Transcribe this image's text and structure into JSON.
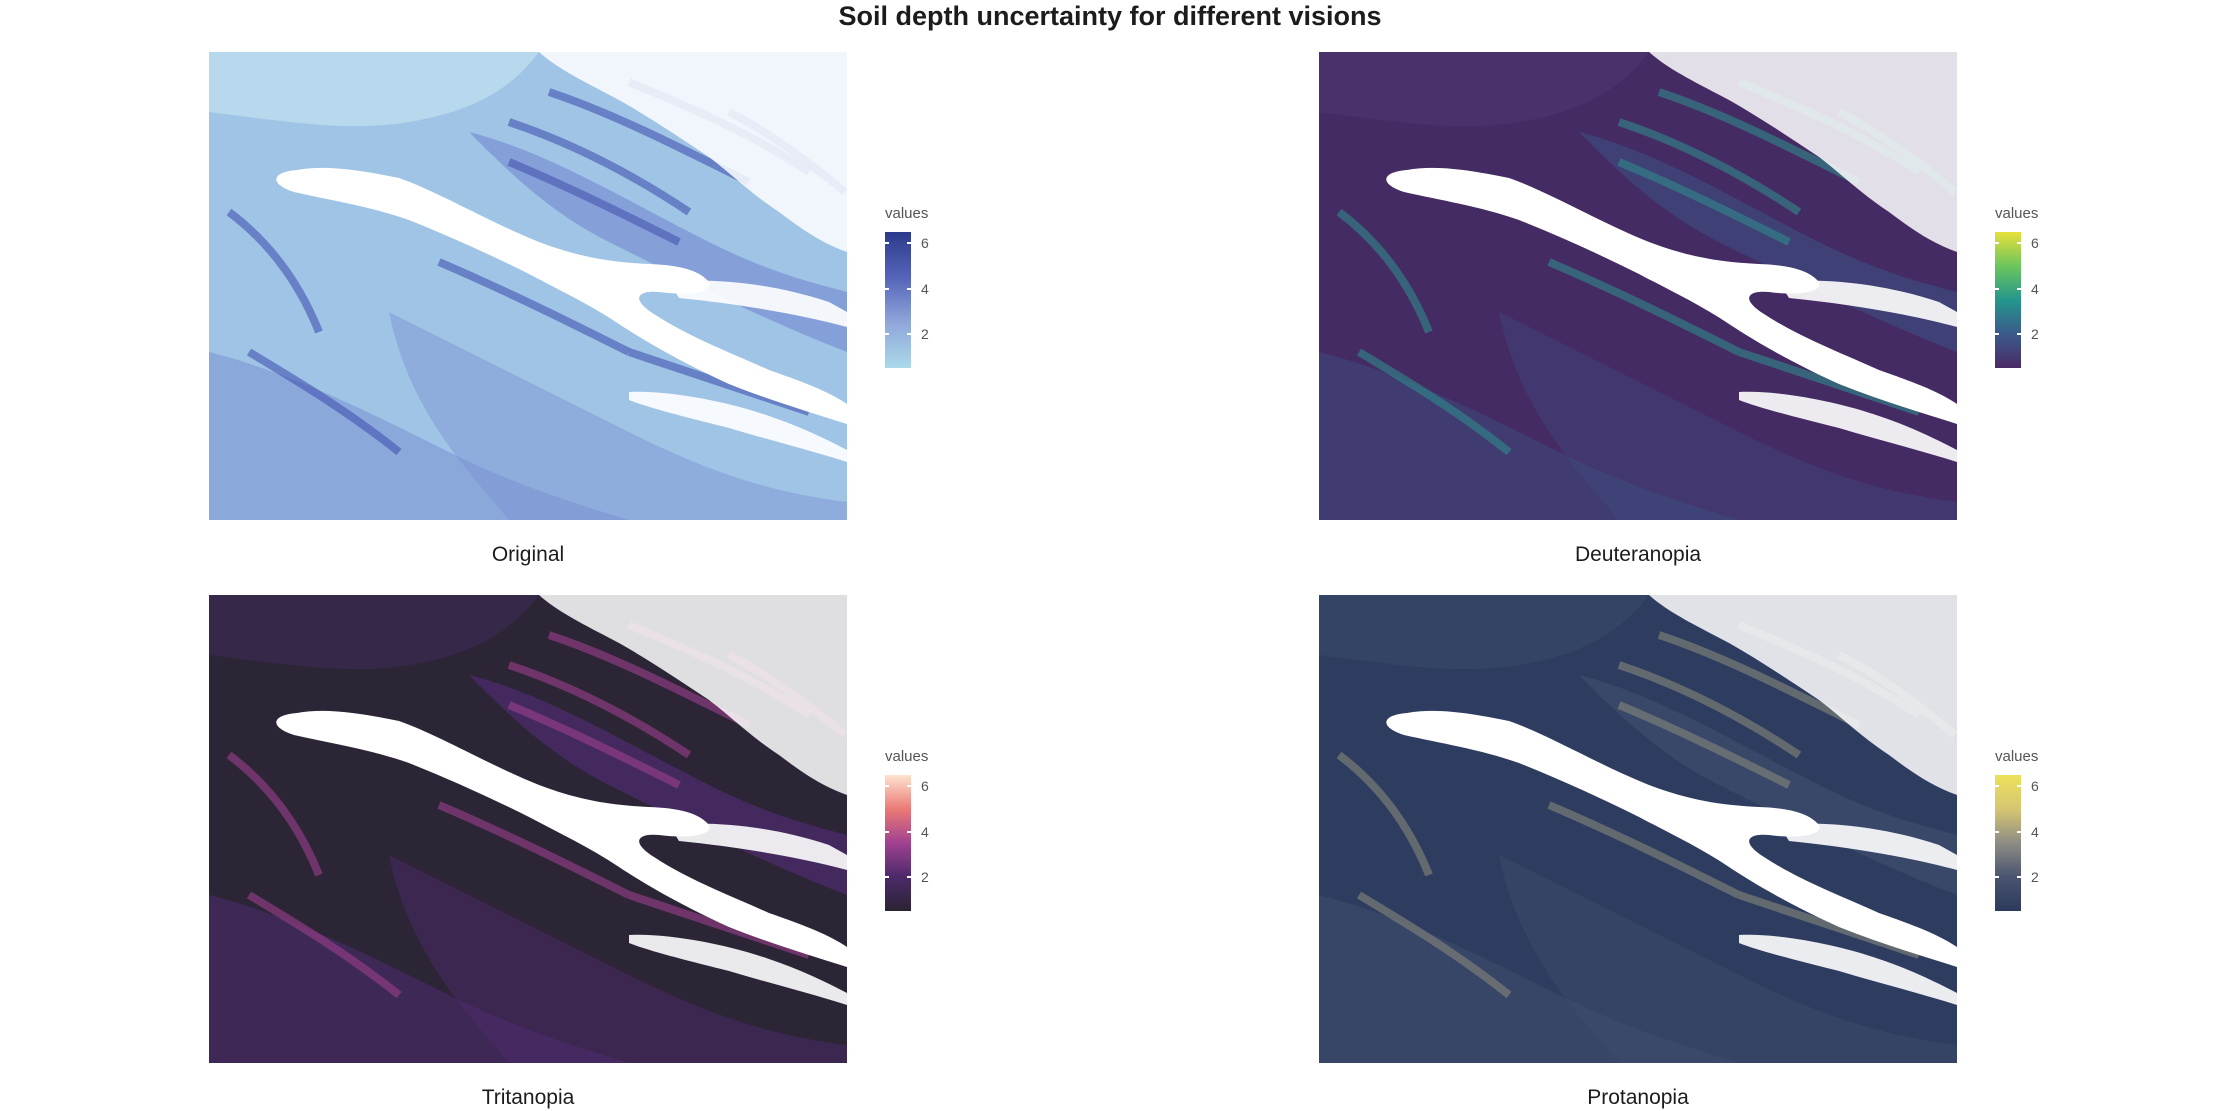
{
  "title": "Soil depth uncertainty for different visions",
  "chart_data": [
    {
      "type": "heatmap",
      "panel": "Original",
      "title": "Original",
      "legend": {
        "title": "values",
        "range": [
          0.5,
          6.5
        ],
        "ticks": [
          2,
          4,
          6
        ],
        "tick_labels": [
          "2",
          "4",
          "6"
        ],
        "colors": [
          "#abd9e9",
          "#8fa6da",
          "#5564b9",
          "#2c3a8c"
        ],
        "background": "#9fc4e6",
        "mid": "#7a92d2",
        "dark": "#4454b0",
        "spot": "#c3e3ef"
      }
    },
    {
      "type": "heatmap",
      "panel": "Deuteranopia",
      "title": "Deuteranopia",
      "legend": {
        "title": "values",
        "range": [
          0.5,
          6.5
        ],
        "ticks": [
          2,
          4,
          6
        ],
        "tick_labels": [
          "2",
          "4",
          "6"
        ],
        "colors": [
          "#4a2a65",
          "#3b5a8b",
          "#24968c",
          "#6cc55c",
          "#e8e03a"
        ],
        "background": "#452b63",
        "mid": "#3d4a7e",
        "dark": "#2f8a8b",
        "spot": "#4e3570"
      }
    },
    {
      "type": "heatmap",
      "panel": "Tritanopia",
      "title": "Tritanopia",
      "legend": {
        "title": "values",
        "range": [
          0.5,
          6.5
        ],
        "ticks": [
          2,
          4,
          6
        ],
        "tick_labels": [
          "2",
          "4",
          "6"
        ],
        "colors": [
          "#2b2433",
          "#4b2a6a",
          "#a14191",
          "#ec7a76",
          "#fde3cf"
        ],
        "background": "#2c2536",
        "mid": "#4f2b70",
        "dark": "#9c3f8c",
        "spot": "#3a2950"
      }
    },
    {
      "type": "heatmap",
      "panel": "Protanopia",
      "title": "Protanopia",
      "legend": {
        "title": "values",
        "range": [
          0.5,
          6.5
        ],
        "ticks": [
          2,
          4,
          6
        ],
        "tick_labels": [
          "2",
          "4",
          "6"
        ],
        "colors": [
          "#2c3a5c",
          "#4a5470",
          "#8e8c84",
          "#d6c673",
          "#ece15a"
        ],
        "background": "#2e3c60",
        "mid": "#3f4d6d",
        "dark": "#868779",
        "spot": "#374767"
      }
    }
  ]
}
